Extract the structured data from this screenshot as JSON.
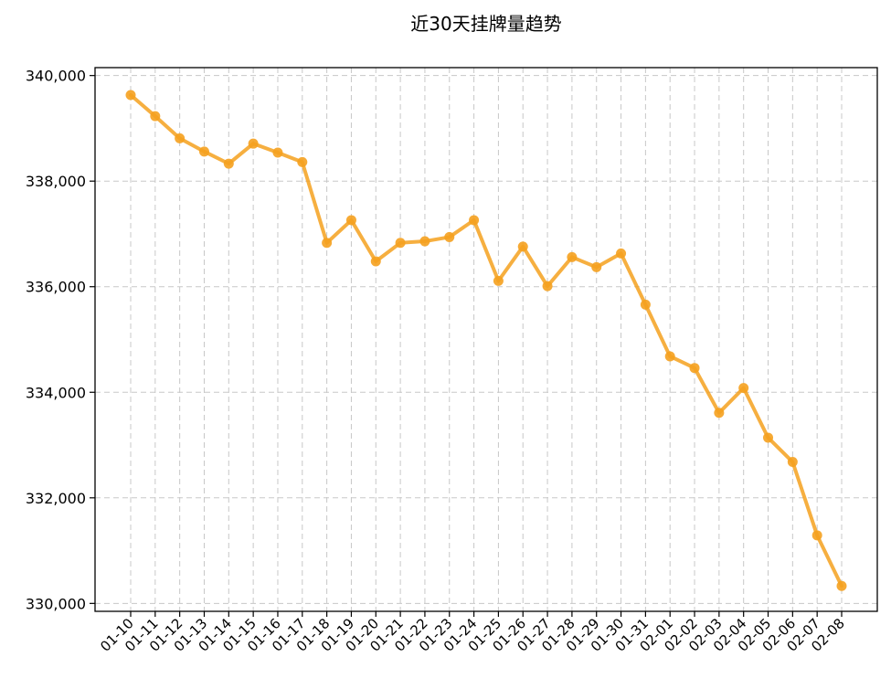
{
  "chart_data": {
    "type": "line",
    "title": "近30天挂牌量趋势",
    "xlabel": "",
    "ylabel": "",
    "categories": [
      "01-10",
      "01-11",
      "01-12",
      "01-13",
      "01-14",
      "01-15",
      "01-16",
      "01-17",
      "01-18",
      "01-19",
      "01-20",
      "01-21",
      "01-22",
      "01-23",
      "01-24",
      "01-25",
      "01-26",
      "01-27",
      "01-28",
      "01-29",
      "01-30",
      "01-31",
      "02-01",
      "02-02",
      "02-03",
      "02-04",
      "02-05",
      "02-06",
      "02-07",
      "02-08"
    ],
    "series": [
      {
        "values": [
          339630,
          339230,
          338810,
          338560,
          338330,
          338710,
          338540,
          338360,
          336830,
          337260,
          336480,
          336830,
          336860,
          336940,
          337260,
          336110,
          336760,
          336010,
          336560,
          336370,
          336630,
          335660,
          334680,
          334460,
          333610,
          334080,
          333140,
          332680,
          331290,
          330330
        ],
        "color": "#f5a11f"
      }
    ],
    "ylim": [
      329850,
      340150
    ],
    "yticks": [
      330000,
      332000,
      334000,
      336000,
      338000,
      340000
    ],
    "ytick_labels": [
      "330,000",
      "332,000",
      "334,000",
      "336,000",
      "338,000",
      "340,000"
    ],
    "grid": true,
    "legend": "none"
  }
}
